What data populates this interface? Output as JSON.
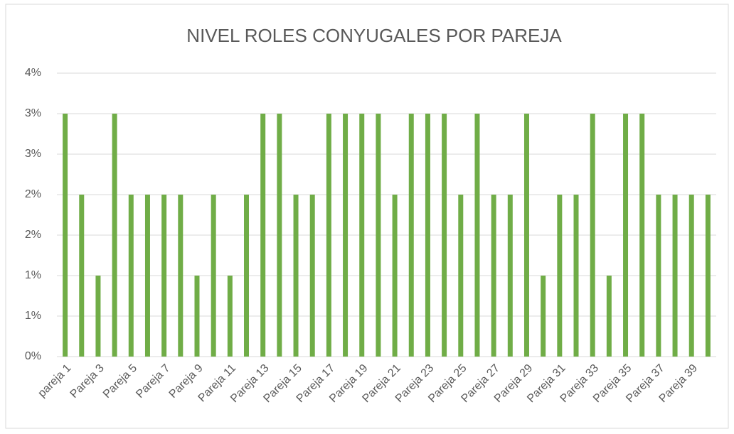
{
  "chart_data": {
    "type": "bar",
    "title": "NIVEL ROLES CONYUGALES POR PAREJA",
    "categories": [
      "pareja 1",
      null,
      "Pareja 3",
      null,
      "Pareja 5",
      null,
      "Pareja 7",
      null,
      "Pareja 9",
      null,
      "Pareja 11",
      null,
      "Pareja 13",
      null,
      "Pareja 15",
      null,
      "Pareja 17",
      null,
      "Pareja 19",
      null,
      "Pareja 21",
      null,
      "Pareja 23",
      null,
      "Pareja 25",
      null,
      "Pareja 27",
      null,
      "Pareja 29",
      null,
      "Pareja 31",
      null,
      "Pareja 33",
      null,
      "Pareja 35",
      null,
      "Pareja 37",
      null,
      "Pareja 39",
      null
    ],
    "values": [
      3,
      2,
      1,
      3,
      2,
      2,
      2,
      2,
      1,
      2,
      1,
      2,
      3,
      3,
      2,
      2,
      3,
      3,
      3,
      3,
      2,
      3,
      3,
      3,
      2,
      3,
      2,
      2,
      3,
      1,
      2,
      2,
      3,
      1,
      3,
      3,
      2,
      2,
      2,
      2
    ],
    "color": "#70ad47",
    "ylim": [
      0,
      3.5
    ],
    "yticks": [
      {
        "value": 0,
        "label": "0%"
      },
      {
        "value": 0.5,
        "label": "1%"
      },
      {
        "value": 1,
        "label": "1%"
      },
      {
        "value": 1.5,
        "label": "2%"
      },
      {
        "value": 2,
        "label": "2%"
      },
      {
        "value": 2.5,
        "label": "3%"
      },
      {
        "value": 3,
        "label": "3%"
      },
      {
        "value": 3.5,
        "label": "4%"
      }
    ],
    "grid": true
  }
}
